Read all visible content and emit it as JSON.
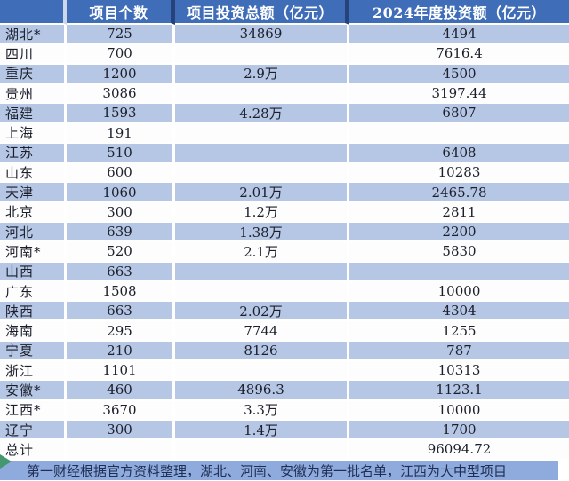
{
  "chart_data": {
    "type": "table",
    "title": "",
    "columns": [
      "",
      "项目个数",
      "项目投资总额（亿元）",
      "2024年度投资额（亿元）"
    ],
    "rows": [
      [
        "湖北*",
        "725",
        "34869",
        "4494"
      ],
      [
        "四川",
        "700",
        "",
        "7616.4"
      ],
      [
        "重庆",
        "1200",
        "2.9万",
        "4500"
      ],
      [
        "贵州",
        "3086",
        "",
        "3197.44"
      ],
      [
        "福建",
        "1593",
        "4.28万",
        "6807"
      ],
      [
        "上海",
        "191",
        "",
        ""
      ],
      [
        "江苏",
        "510",
        "",
        "6408"
      ],
      [
        "山东",
        "600",
        "",
        "10283"
      ],
      [
        "天津",
        "1060",
        "2.01万",
        "2465.78"
      ],
      [
        "北京",
        "300",
        "1.2万",
        "2811"
      ],
      [
        "河北",
        "639",
        "1.38万",
        "2200"
      ],
      [
        "河南*",
        "520",
        "2.1万",
        "5830"
      ],
      [
        "山西",
        "663",
        "",
        ""
      ],
      [
        "广东",
        "1508",
        "",
        "10000"
      ],
      [
        "陕西",
        "663",
        "2.02万",
        "4304"
      ],
      [
        "海南",
        "295",
        "7744",
        "1255"
      ],
      [
        "宁夏",
        "210",
        "8126",
        "787"
      ],
      [
        "浙江",
        "1101",
        "",
        "10313"
      ],
      [
        "安徽*",
        "460",
        "4896.3",
        "1123.1"
      ],
      [
        "江西*",
        "3670",
        "3.3万",
        "10000"
      ],
      [
        "辽宁",
        "300",
        "1.4万",
        "1700"
      ],
      [
        "总计",
        "",
        "",
        "96094.72"
      ]
    ],
    "note": "第一财经根据官方资料整理，湖北、河南、安徽为第一批名单，江西为大中型项目",
    "layout": {
      "zebra_start": "blue",
      "grid": "white 2-3px gaps between cells"
    }
  },
  "colors": {
    "header_blue": "#3f6db8",
    "header_separator_navy": "#26427a",
    "row_light_blue": "#b6c6e5",
    "row_white": "#fdfdfd",
    "footer_strip_blue": "#8faadc",
    "body_text": "#1b1f2a",
    "footer_text": "#1e2f55",
    "corner_triangle_green": "#459770"
  }
}
